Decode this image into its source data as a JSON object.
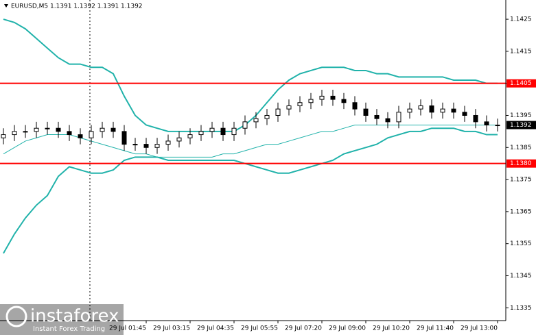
{
  "chart_data": {
    "type": "candlestick",
    "title": "EURUSD,M5  1.1391 1.1392 1.1391 1.1392",
    "categories": [
      null,
      null,
      null,
      null,
      null,
      null,
      null,
      null,
      null,
      null,
      null,
      null,
      null,
      "29 Jul 01:45",
      null,
      null,
      null,
      "29 Jul 03:15",
      null,
      null,
      null,
      "29 Jul 04:35",
      null,
      null,
      null,
      "29 Jul 05:55",
      null,
      null,
      null,
      "29 Jul 07:20",
      null,
      null,
      null,
      "29 Jul 09:00",
      null,
      null,
      null,
      "29 Jul 10:20",
      null,
      null,
      null,
      "29 Jul 11:40",
      null,
      null,
      null,
      "29 Jul 13:00"
    ],
    "open": [
      1.1388,
      1.1389,
      1.139,
      1.139,
      1.1391,
      1.1391,
      1.139,
      1.1389,
      1.1388,
      1.139,
      1.1391,
      1.139,
      1.1386,
      1.1386,
      1.1385,
      1.1386,
      1.1387,
      1.1388,
      1.1389,
      1.139,
      1.1391,
      1.1389,
      1.1391,
      1.1393,
      1.1394,
      1.1395,
      1.1397,
      1.1398,
      1.1399,
      1.14,
      1.1401,
      1.14,
      1.1399,
      1.1397,
      1.1395,
      1.1394,
      1.1393,
      1.1396,
      1.1397,
      1.1398,
      1.1396,
      1.1397,
      1.1396,
      1.1395,
      1.1393,
      1.1392
    ],
    "high": [
      1.1391,
      1.1392,
      1.1392,
      1.1393,
      1.1393,
      1.1393,
      1.1392,
      1.1391,
      1.1392,
      1.1393,
      1.1393,
      1.1392,
      1.1388,
      1.1388,
      1.1388,
      1.1389,
      1.139,
      1.1391,
      1.1392,
      1.1393,
      1.1393,
      1.1393,
      1.1395,
      1.1396,
      1.1397,
      1.1399,
      1.14,
      1.1401,
      1.1402,
      1.1403,
      1.1403,
      1.1402,
      1.1401,
      1.1399,
      1.1397,
      1.1396,
      1.1398,
      1.1399,
      1.14,
      1.14,
      1.1399,
      1.1399,
      1.1398,
      1.1397,
      1.1395,
      1.1394
    ],
    "low": [
      1.1386,
      1.1387,
      1.1388,
      1.1388,
      1.1389,
      1.1388,
      1.1387,
      1.1386,
      1.1386,
      1.1388,
      1.1388,
      1.1384,
      1.1384,
      1.1383,
      1.1383,
      1.1384,
      1.1385,
      1.1386,
      1.1387,
      1.1388,
      1.1387,
      1.1387,
      1.1389,
      1.1391,
      1.1392,
      1.1393,
      1.1395,
      1.1396,
      1.1397,
      1.1398,
      1.1398,
      1.1397,
      1.1395,
      1.1393,
      1.1392,
      1.1391,
      1.1391,
      1.1394,
      1.1395,
      1.1394,
      1.1394,
      1.1394,
      1.1393,
      1.1391,
      1.139,
      1.139
    ],
    "close": [
      1.1389,
      1.139,
      1.139,
      1.1391,
      1.1391,
      1.139,
      1.1389,
      1.1388,
      1.139,
      1.1391,
      1.139,
      1.1386,
      1.1386,
      1.1385,
      1.1386,
      1.1387,
      1.1388,
      1.1389,
      1.139,
      1.1391,
      1.1389,
      1.1391,
      1.1393,
      1.1394,
      1.1395,
      1.1397,
      1.1398,
      1.1399,
      1.14,
      1.1401,
      1.14,
      1.1399,
      1.1397,
      1.1395,
      1.1394,
      1.1393,
      1.1396,
      1.1397,
      1.1398,
      1.1396,
      1.1397,
      1.1396,
      1.1395,
      1.1393,
      1.1392,
      1.1392
    ],
    "candle_color": "#000000",
    "bands": [
      {
        "color": "#20b2aa",
        "width": 2,
        "values": [
          1.1425,
          1.1424,
          1.1422,
          1.1419,
          1.1416,
          1.1413,
          1.1411,
          1.1411,
          1.141,
          1.141,
          1.1408,
          1.1401,
          1.1395,
          1.1392,
          1.1391,
          1.139,
          1.139,
          1.139,
          1.139,
          1.139,
          1.139,
          1.139,
          1.1392,
          1.1395,
          1.1399,
          1.1403,
          1.1406,
          1.1408,
          1.1409,
          1.141,
          1.141,
          1.141,
          1.1409,
          1.1409,
          1.1408,
          1.1408,
          1.1407,
          1.1407,
          1.1407,
          1.1407,
          1.1407,
          1.1406,
          1.1406,
          1.1406,
          1.1405,
          1.1405
        ]
      },
      {
        "color": "#20b2aa",
        "width": 1,
        "values": [
          1.1383,
          1.1385,
          1.1387,
          1.1388,
          1.1389,
          1.1389,
          1.1389,
          1.1388,
          1.1387,
          1.1386,
          1.1385,
          1.1384,
          1.1383,
          1.1383,
          1.1382,
          1.1382,
          1.1382,
          1.1382,
          1.1382,
          1.1382,
          1.1383,
          1.1383,
          1.1384,
          1.1385,
          1.1386,
          1.1386,
          1.1387,
          1.1388,
          1.1389,
          1.139,
          1.139,
          1.1391,
          1.1392,
          1.1392,
          1.1392,
          1.1392,
          1.1392,
          1.1392,
          1.1392,
          1.1392,
          1.1392,
          1.1392,
          1.1392,
          1.1392,
          1.1392,
          1.1392
        ]
      },
      {
        "color": "#20b2aa",
        "width": 2,
        "values": [
          1.1352,
          1.1358,
          1.1363,
          1.1367,
          1.137,
          1.1376,
          1.1379,
          1.1378,
          1.1377,
          1.1377,
          1.1378,
          1.1381,
          1.1382,
          1.1382,
          1.1382,
          1.1381,
          1.1381,
          1.1381,
          1.1381,
          1.1381,
          1.1381,
          1.1381,
          1.138,
          1.1379,
          1.1378,
          1.1377,
          1.1377,
          1.1378,
          1.1379,
          1.138,
          1.1381,
          1.1383,
          1.1384,
          1.1385,
          1.1386,
          1.1388,
          1.1389,
          1.139,
          1.139,
          1.1391,
          1.1391,
          1.1391,
          1.139,
          1.139,
          1.1389,
          1.1389
        ]
      }
    ],
    "levels": [
      {
        "value": 1.1405,
        "label": "1.1405"
      },
      {
        "value": 1.138,
        "label": "1.1380"
      }
    ],
    "level_color": "#ff0000",
    "current_price": 1.1392,
    "ylim": [
      1.1331,
      1.1431
    ],
    "yticks": [
      1.1335,
      1.1345,
      1.1355,
      1.1365,
      1.1375,
      1.1385,
      1.1395,
      1.1405,
      1.1415,
      1.1425
    ]
  },
  "watermark": {
    "brand": "instaforex",
    "tagline": "Instant Forex Trading"
  }
}
